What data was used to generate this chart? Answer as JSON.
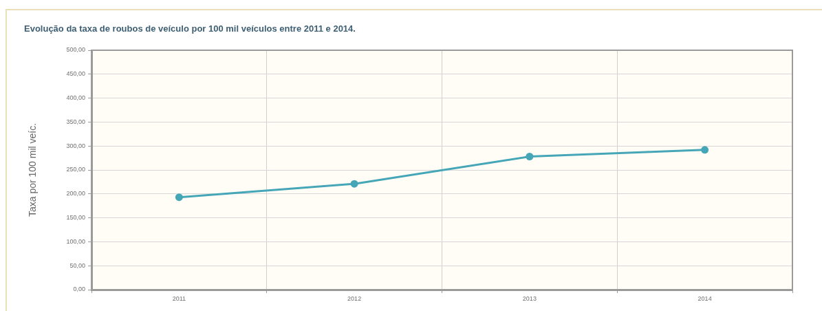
{
  "chart_data": {
    "type": "line",
    "title": "Evolução da taxa de roubos de veículo por 100 mil veículos entre 2011 e 2014.",
    "ylabel": "Taxa por 100 mil veíc.",
    "categories": [
      "2011",
      "2012",
      "2013",
      "2014"
    ],
    "series": [
      {
        "color": "#45a6b7",
        "values": [
          193,
          221,
          278,
          292
        ]
      }
    ],
    "ylim": [
      0,
      500
    ],
    "yticks": [
      {
        "value": 0,
        "label": "0,00"
      },
      {
        "value": 50,
        "label": "50,00"
      },
      {
        "value": 100,
        "label": "100,00"
      },
      {
        "value": 150,
        "label": "150,00"
      },
      {
        "value": 200,
        "label": "200,00"
      },
      {
        "value": 250,
        "label": "250,00"
      },
      {
        "value": 300,
        "label": "300,00"
      },
      {
        "value": 350,
        "label": "350,00"
      },
      {
        "value": 400,
        "label": "400,00"
      },
      {
        "value": 450,
        "label": "450,00"
      },
      {
        "value": 500,
        "label": "500,00"
      }
    ],
    "grid": true,
    "marker": "circle",
    "line_style": "solid"
  }
}
